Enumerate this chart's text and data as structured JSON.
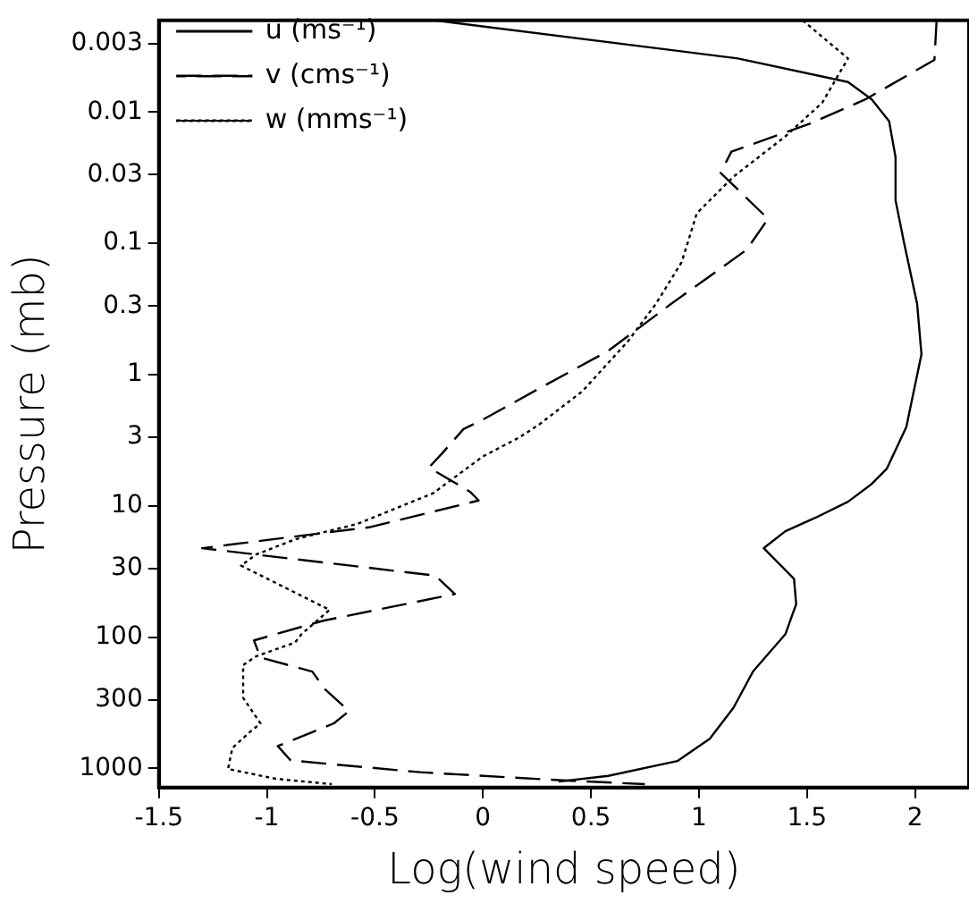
{
  "chart_data": {
    "type": "line",
    "xlabel": "Log(wind speed)",
    "ylabel": "Pressure (mb)",
    "log": "y",
    "grid": false,
    "legend": "top left",
    "marker": "none",
    "xlim": [
      -1.5,
      2.25
    ],
    "xticks": [
      -1.5,
      -1,
      -0.5,
      0,
      0.5,
      1,
      1.5,
      2
    ],
    "ylim": [
      1400,
      0.002
    ],
    "yticks": [
      0.003,
      0.01,
      0.03,
      0.1,
      0.3,
      1,
      3,
      10,
      30,
      100,
      300,
      1000
    ],
    "series": [
      {
        "name": "u (ms⁻¹)",
        "color": "#000000",
        "line_style": "solid",
        "x": [
          -0.22,
          1.18,
          1.69,
          1.8,
          1.88,
          1.91,
          1.91,
          1.95,
          2.01,
          2.03,
          1.96,
          1.87,
          1.8,
          1.69,
          1.54,
          1.4,
          1.3,
          1.44,
          1.45,
          1.4,
          1.25,
          1.16,
          1.05,
          0.9,
          0.58,
          0.35
        ],
        "values": [
          0.002,
          0.0039,
          0.0059,
          0.008,
          0.0117,
          0.022,
          0.047,
          0.1,
          0.29,
          0.7,
          2.5,
          5.2,
          6.8,
          9.3,
          12.3,
          15.6,
          21,
          36,
          56,
          95,
          183,
          345,
          595,
          880,
          1140,
          1260
        ]
      },
      {
        "name": "v (cms⁻¹)",
        "color": "#000000",
        "line_style": "dashed",
        "x": [
          2.1,
          2.09,
          1.77,
          1.51,
          1.15,
          1.1,
          1.32,
          1.22,
          0.87,
          0.58,
          0.29,
          0,
          -0.09,
          -0.19,
          -0.25,
          -0.06,
          -0.02,
          -0.52,
          -1.3,
          -1.05,
          -0.22,
          -0.13,
          -0.74,
          -1.06,
          -1.03,
          -0.79,
          -0.73,
          -0.62,
          -0.69,
          -0.95,
          -0.89,
          -0.29,
          0.35,
          0.75
        ],
        "values": [
          0.002,
          0.004,
          0.008,
          0.0123,
          0.02,
          0.029,
          0.065,
          0.112,
          0.29,
          0.66,
          1.2,
          2.2,
          2.6,
          4,
          5.1,
          7.8,
          9.1,
          14.5,
          21,
          23.5,
          34,
          47,
          75,
          106,
          143,
          183,
          251,
          366,
          454,
          676,
          870,
          1070,
          1230,
          1320
        ]
      },
      {
        "name": "w (mms⁻¹)",
        "color": "#000000",
        "line_style": "dotted",
        "x": [
          1.48,
          1.69,
          1.57,
          1.4,
          1.16,
          0.99,
          0.92,
          0.8,
          0.67,
          0.46,
          0.26,
          0.17,
          0,
          -0.23,
          -0.58,
          -0.87,
          -1.05,
          -1.12,
          -0.71,
          -0.84,
          -0.87,
          -1.05,
          -1.11,
          -1.11,
          -1.03,
          -1.08,
          -1.16,
          -1.18,
          -0.96,
          -0.7
        ],
        "values": [
          0.002,
          0.0039,
          0.0085,
          0.0153,
          0.031,
          0.059,
          0.139,
          0.29,
          0.56,
          1.34,
          2.4,
          3,
          4.2,
          8,
          13.7,
          18,
          23.5,
          28.5,
          62,
          95,
          110,
          140,
          163,
          290,
          454,
          530,
          700,
          1010,
          1200,
          1320
        ]
      }
    ]
  }
}
